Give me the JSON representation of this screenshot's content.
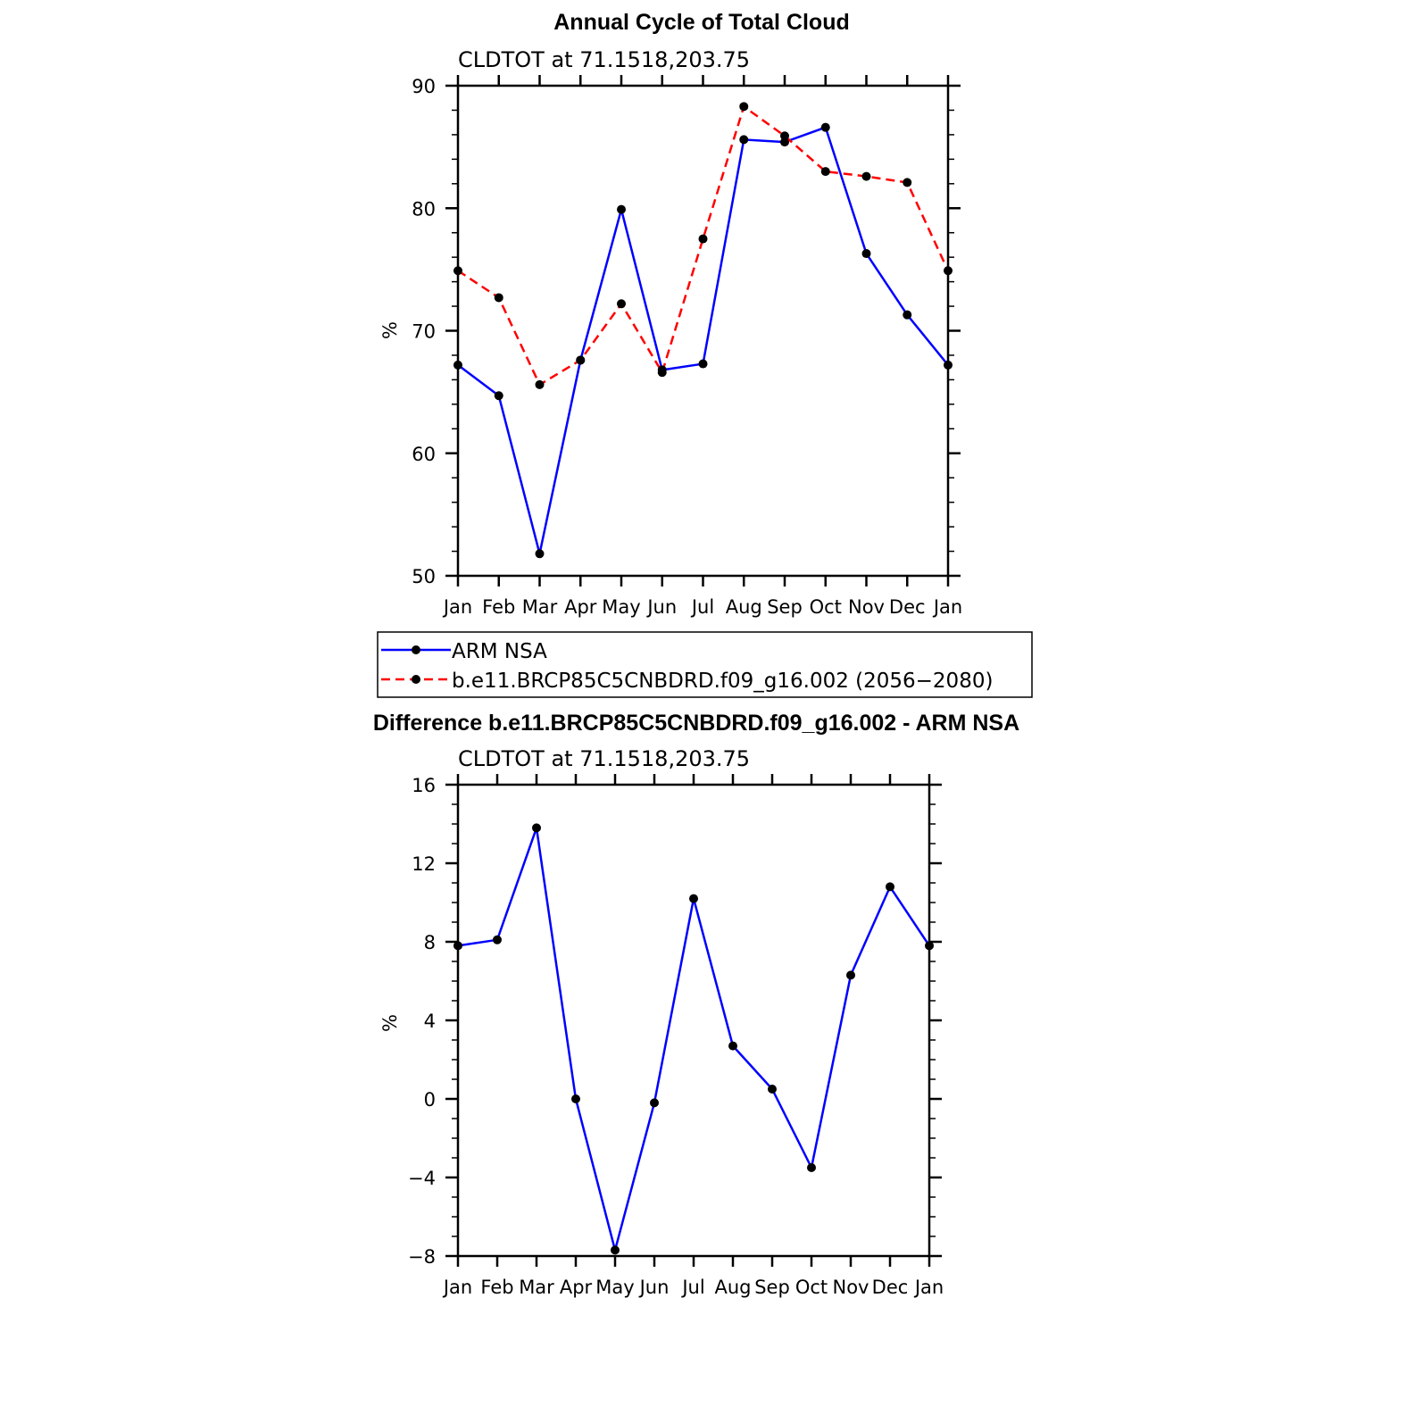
{
  "chart_data": [
    {
      "type": "line",
      "title": "Annual Cycle of Total Cloud",
      "subtitle": "CLDTOT at 71.1518,203.75",
      "ylabel": "%",
      "ylim": [
        50,
        90
      ],
      "yticks": [
        50,
        60,
        70,
        80,
        90
      ],
      "categories": [
        "Jan",
        "Feb",
        "Mar",
        "Apr",
        "May",
        "Jun",
        "Jul",
        "Aug",
        "Sep",
        "Oct",
        "Nov",
        "Dec",
        "Jan"
      ],
      "series": [
        {
          "name": "ARM NSA",
          "color": "#0000ff",
          "dash": "solid",
          "values": [
            67.2,
            64.7,
            51.8,
            67.6,
            79.9,
            66.8,
            67.3,
            85.6,
            85.4,
            86.6,
            76.3,
            71.3,
            67.2
          ]
        },
        {
          "name": "b.e11.BRCP85C5CNBDRD.f09_g16.002 (2056−2080)",
          "color": "#ff0000",
          "dash": "dashed",
          "values": [
            74.9,
            72.7,
            65.6,
            67.6,
            72.2,
            66.6,
            77.5,
            88.3,
            85.9,
            83.0,
            82.6,
            82.1,
            74.9
          ]
        }
      ],
      "legend": "below"
    },
    {
      "type": "line",
      "title": "Difference b.e11.BRCP85C5CNBDRD.f09_g16.002 - ARM NSA",
      "subtitle": "CLDTOT at 71.1518,203.75",
      "ylabel": "%",
      "ylim": [
        -8,
        16
      ],
      "yticks": [
        "−8",
        "−4",
        "0",
        "4",
        "8",
        "12",
        "16"
      ],
      "yticks_values": [
        -8,
        -4,
        0,
        4,
        8,
        12,
        16
      ],
      "categories": [
        "Jan",
        "Feb",
        "Mar",
        "Apr",
        "May",
        "Jun",
        "Jul",
        "Aug",
        "Sep",
        "Oct",
        "Nov",
        "Dec",
        "Jan"
      ],
      "series": [
        {
          "color": "#0000ff",
          "dash": "solid",
          "values": [
            7.8,
            8.1,
            13.8,
            0.0,
            -7.7,
            -0.2,
            10.2,
            2.7,
            0.5,
            -3.5,
            6.3,
            10.8,
            7.8
          ]
        }
      ]
    }
  ]
}
